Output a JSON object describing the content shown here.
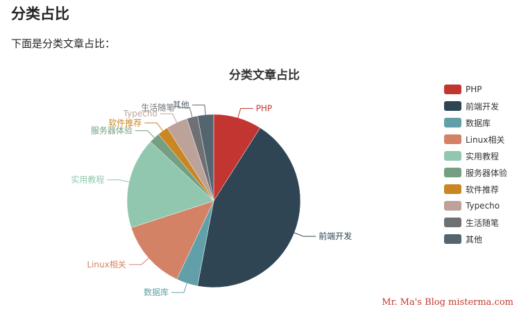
{
  "page": {
    "heading": "分类占比",
    "intro": "下面是分类文章占比："
  },
  "chart_data": {
    "type": "pie",
    "title": "分类文章占比",
    "legend_position": "right",
    "labels": [
      "PHP",
      "前端开发",
      "数据库",
      "Linux相关",
      "实用教程",
      "服务器体验",
      "软件推荐",
      "Typecho",
      "生活随笔",
      "其他"
    ],
    "values": [
      9,
      44,
      4,
      13,
      17,
      2,
      2,
      4,
      2,
      3
    ],
    "colors": [
      "#c23531",
      "#2f4554",
      "#61a0a8",
      "#d48265",
      "#91c7ae",
      "#749f83",
      "#ca8622",
      "#bda29a",
      "#6e7074",
      "#546570"
    ]
  },
  "watermark": "Mr. Ma's Blog  misterma.com"
}
